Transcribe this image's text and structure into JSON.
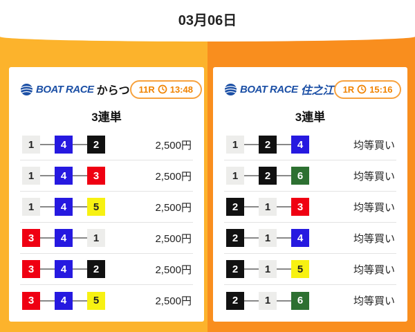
{
  "page": {
    "date_title": "03月06日"
  },
  "colors": {
    "bg_left_orange": "#FCB32C",
    "bg_right_orange": "#F98E1E",
    "brand_blue": "#1B4FA5",
    "badge_text_orange": "#F08300",
    "badge_border_orange": "#F7A13C",
    "row_separator": "#e3e3e3"
  },
  "boat_colors": {
    "1": {
      "bg": "#EDEDEB",
      "fg": "#222222"
    },
    "2": {
      "bg": "#111111",
      "fg": "#ffffff"
    },
    "3": {
      "bg": "#EF0012",
      "fg": "#ffffff"
    },
    "4": {
      "bg": "#2619E0",
      "fg": "#ffffff"
    },
    "5": {
      "bg": "#F7F112",
      "fg": "#222222"
    },
    "6": {
      "bg": "#2D7031",
      "fg": "#ffffff"
    }
  },
  "cards": [
    {
      "brand": "BOAT RACE",
      "brand_style": "color:#1B4FA5",
      "venue": "からつ",
      "venue_style": "color:#111111;font-style:normal",
      "race": "11R",
      "time": "13:48",
      "bet_type": "3連単",
      "rows": [
        {
          "combo": [
            1,
            4,
            2
          ],
          "value": "2,500円"
        },
        {
          "combo": [
            1,
            4,
            3
          ],
          "value": "2,500円"
        },
        {
          "combo": [
            1,
            4,
            5
          ],
          "value": "2,500円"
        },
        {
          "combo": [
            3,
            4,
            1
          ],
          "value": "2,500円"
        },
        {
          "combo": [
            3,
            4,
            2
          ],
          "value": "2,500円"
        },
        {
          "combo": [
            3,
            4,
            5
          ],
          "value": "2,500円"
        }
      ]
    },
    {
      "brand": "BOAT RACE",
      "brand_style": "color:#1B4FA5",
      "venue": "住之江",
      "venue_style": "color:#1B4FA5;font-style:italic",
      "race": "1R",
      "time": "15:16",
      "bet_type": "3連単",
      "rows": [
        {
          "combo": [
            1,
            2,
            4
          ],
          "value": "均等買い"
        },
        {
          "combo": [
            1,
            2,
            6
          ],
          "value": "均等買い"
        },
        {
          "combo": [
            2,
            1,
            3
          ],
          "value": "均等買い"
        },
        {
          "combo": [
            2,
            1,
            4
          ],
          "value": "均等買い"
        },
        {
          "combo": [
            2,
            1,
            5
          ],
          "value": "均等買い"
        },
        {
          "combo": [
            2,
            1,
            6
          ],
          "value": "均等買い"
        }
      ]
    }
  ]
}
